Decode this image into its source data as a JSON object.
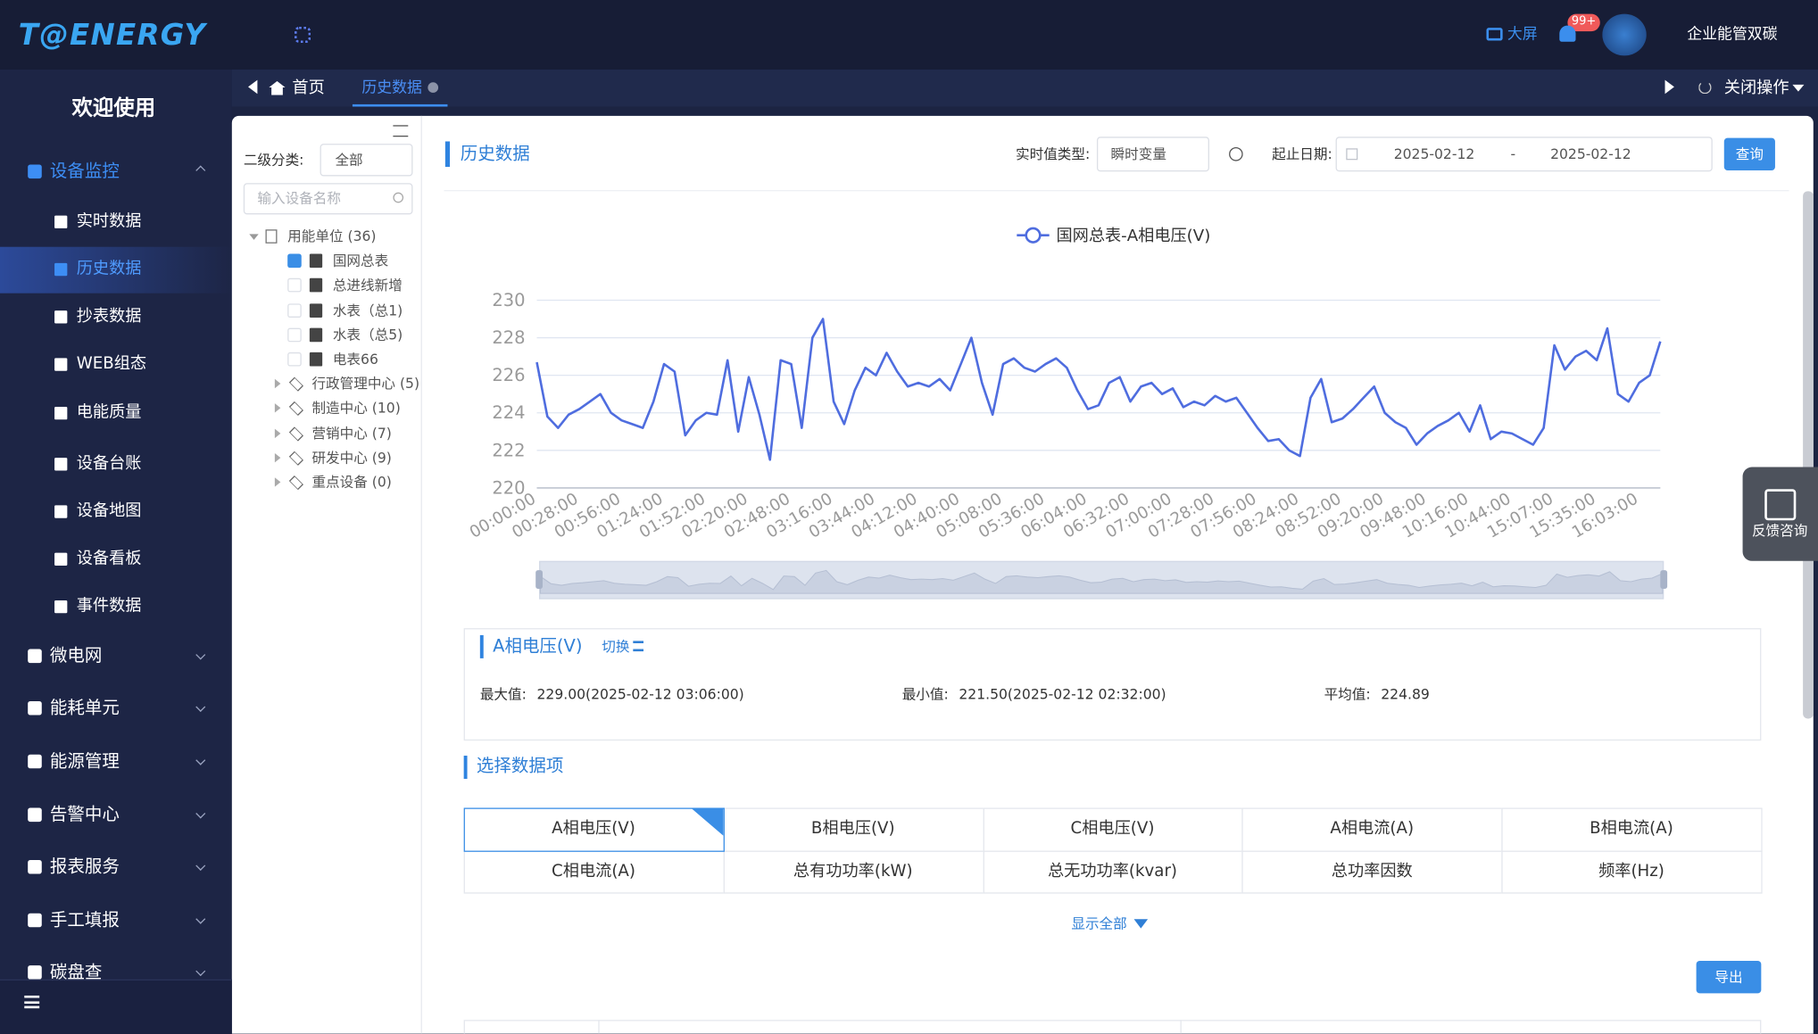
{
  "header": {
    "logo": "T@ENERGY",
    "big_screen": "大屏",
    "badge": "99+",
    "user": "企业能管双碳"
  },
  "sidebar": {
    "welcome": "欢迎使用",
    "menu": [
      {
        "label": "设备监控",
        "children": [
          {
            "label": "实时数据"
          },
          {
            "label": "历史数据",
            "active": true
          },
          {
            "label": "抄表数据"
          },
          {
            "label": "WEB组态"
          },
          {
            "label": "电能质量"
          },
          {
            "label": "设备台账"
          },
          {
            "label": "设备地图"
          },
          {
            "label": "设备看板"
          },
          {
            "label": "事件数据"
          }
        ]
      },
      {
        "label": "微电网"
      },
      {
        "label": "能耗单元"
      },
      {
        "label": "能源管理"
      },
      {
        "label": "告警中心"
      },
      {
        "label": "报表服务"
      },
      {
        "label": "手工填报"
      },
      {
        "label": "碳盘查"
      }
    ]
  },
  "tabs": {
    "items": [
      "首页",
      "历史数据"
    ],
    "close_ops": "关闭操作"
  },
  "tree_panel": {
    "filter_label": "二级分类:",
    "filter_value": "全部",
    "search_placeholder": "输入设备名称",
    "root": "用能单位 (36)",
    "devices": [
      {
        "label": "国网总表",
        "checked": true
      },
      {
        "label": "总进线新增",
        "checked": false
      },
      {
        "label": "水表（总1)",
        "checked": false
      },
      {
        "label": "水表（总5)",
        "checked": false
      },
      {
        "label": "电表66",
        "checked": false
      }
    ],
    "groups": [
      "行政管理中心 (5)",
      "制造中心 (10)",
      "营销中心 (7)",
      "研发中心 (9)",
      "重点设备 (0)"
    ]
  },
  "toolbar": {
    "title": "历史数据",
    "type_label": "实时值类型:",
    "type_value": "瞬时变量",
    "date_label": "起止日期:",
    "start": "2025-02-12",
    "separator": "-",
    "end": "2025-02-12",
    "query": "查询"
  },
  "chart_data": {
    "type": "line",
    "grid": true,
    "legend": "top",
    "categories": [
      "00:00:00",
      null,
      null,
      null,
      "00:28:00",
      null,
      null,
      null,
      "00:56:00",
      null,
      null,
      null,
      "01:24:00",
      null,
      null,
      null,
      "01:52:00",
      null,
      null,
      null,
      "02:20:00",
      null,
      null,
      null,
      "02:48:00",
      null,
      null,
      null,
      "03:16:00",
      null,
      null,
      null,
      "03:44:00",
      null,
      null,
      null,
      "04:12:00",
      null,
      null,
      null,
      "04:40:00",
      null,
      null,
      null,
      "05:08:00",
      null,
      null,
      null,
      "05:36:00",
      null,
      null,
      null,
      "06:04:00",
      null,
      null,
      null,
      "06:32:00",
      null,
      null,
      null,
      "07:00:00",
      null,
      null,
      null,
      "07:28:00",
      null,
      null,
      null,
      "07:56:00",
      null,
      null,
      null,
      "08:24:00",
      null,
      null,
      null,
      "08:52:00",
      null,
      null,
      null,
      "09:20:00",
      null,
      null,
      null,
      "09:48:00",
      null,
      null,
      null,
      "10:16:00",
      null,
      null,
      null,
      "10:44:00",
      null,
      null,
      null,
      "15:07:00",
      null,
      null,
      null,
      "15:35:00",
      null,
      null,
      null,
      "16:03:00",
      null,
      null
    ],
    "series": [
      {
        "name": "国网总表-A相电压(V)",
        "color": "#4f6ddf",
        "values": [
          226.7,
          223.8,
          223.2,
          223.9,
          224.2,
          224.6,
          225.0,
          224.0,
          223.6,
          223.4,
          223.2,
          224.6,
          226.6,
          226.2,
          222.8,
          223.6,
          224.0,
          223.9,
          226.8,
          223.0,
          225.9,
          223.9,
          221.5,
          226.8,
          226.6,
          223.2,
          228.0,
          229.0,
          224.6,
          223.4,
          225.2,
          226.4,
          226.0,
          227.2,
          226.2,
          225.4,
          225.6,
          225.4,
          225.8,
          225.2,
          226.6,
          228.0,
          225.6,
          223.9,
          226.6,
          226.9,
          226.4,
          226.2,
          226.6,
          226.9,
          226.4,
          225.2,
          224.2,
          224.4,
          225.6,
          225.9,
          224.6,
          225.4,
          225.6,
          225.0,
          225.3,
          224.3,
          224.6,
          224.4,
          224.9,
          224.6,
          224.8,
          224.0,
          223.2,
          222.5,
          222.6,
          222.0,
          221.7,
          224.8,
          225.8,
          223.5,
          223.7,
          224.2,
          224.8,
          225.4,
          224.0,
          223.5,
          223.2,
          222.3,
          222.9,
          223.3,
          223.6,
          224.0,
          223.0,
          224.4,
          222.6,
          223.0,
          222.9,
          222.6,
          222.3,
          223.2,
          227.6,
          226.3,
          227.0,
          227.3,
          226.8,
          228.5,
          225.0,
          224.6,
          225.6,
          226.0,
          227.8
        ]
      }
    ],
    "ylim": [
      220,
      230
    ],
    "yticks": [
      220,
      222,
      224,
      226,
      228,
      230
    ]
  },
  "stats": {
    "title": "A相电压(V)",
    "switch": "切换",
    "max_label": "最大值:",
    "max_value": "229.00(2025-02-12 03:06:00)",
    "min_label": "最小值:",
    "min_value": "221.50(2025-02-12 02:32:00)",
    "avg_label": "平均值:",
    "avg_value": "224.89"
  },
  "data_items": {
    "title": "选择数据项",
    "selected": 0,
    "items": [
      "A相电压(V)",
      "B相电压(V)",
      "C相电压(V)",
      "A相电流(A)",
      "B相电流(A)",
      "C相电流(A)",
      "总有功功率(kW)",
      "总无功功率(kvar)",
      "总功率因数",
      "频率(Hz)"
    ],
    "show_all": "显示全部",
    "export": "导出"
  },
  "feedback": "反馈咨询"
}
